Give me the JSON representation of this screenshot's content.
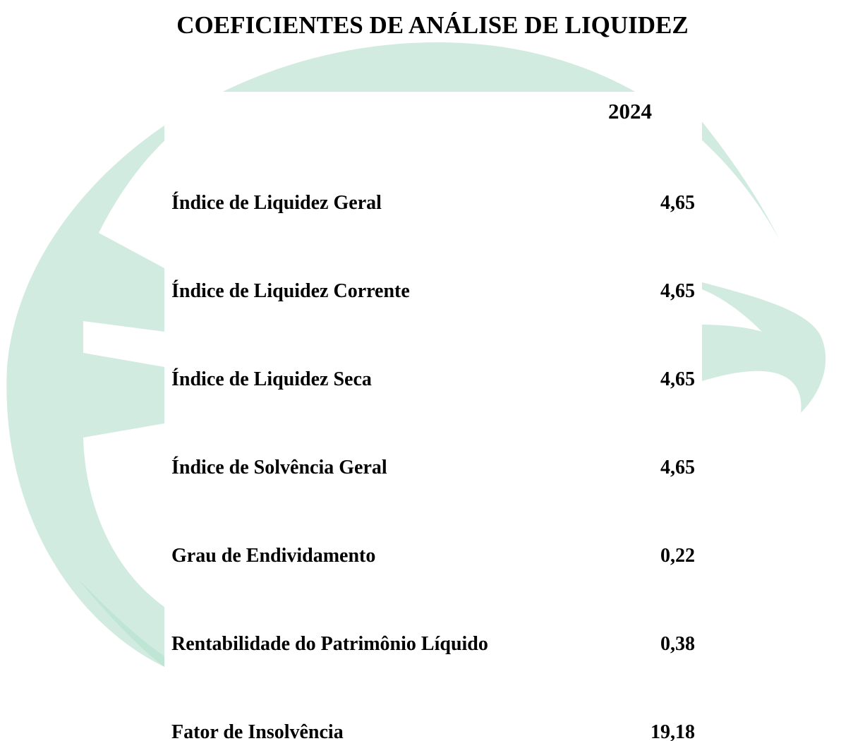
{
  "header": {
    "title": "COEFICIENTES DE ANÁLISE DE LIQUIDEZ"
  },
  "table": {
    "columns": [
      "2024"
    ],
    "rows": [
      [
        "Índice de Liquidez Geral",
        "4,65"
      ],
      [
        "Índice de Liquidez Corrente",
        "4,65"
      ],
      [
        "Índice de Liquidez Seca",
        "4,65"
      ],
      [
        "Índice de Solvência Geral",
        "4,65"
      ],
      [
        "Grau de Endividamento",
        "0,22"
      ],
      [
        "Rentabilidade do Patrimônio Líquido",
        "0,38"
      ],
      [
        "Fator de Insolvência",
        "19,18"
      ]
    ]
  }
}
